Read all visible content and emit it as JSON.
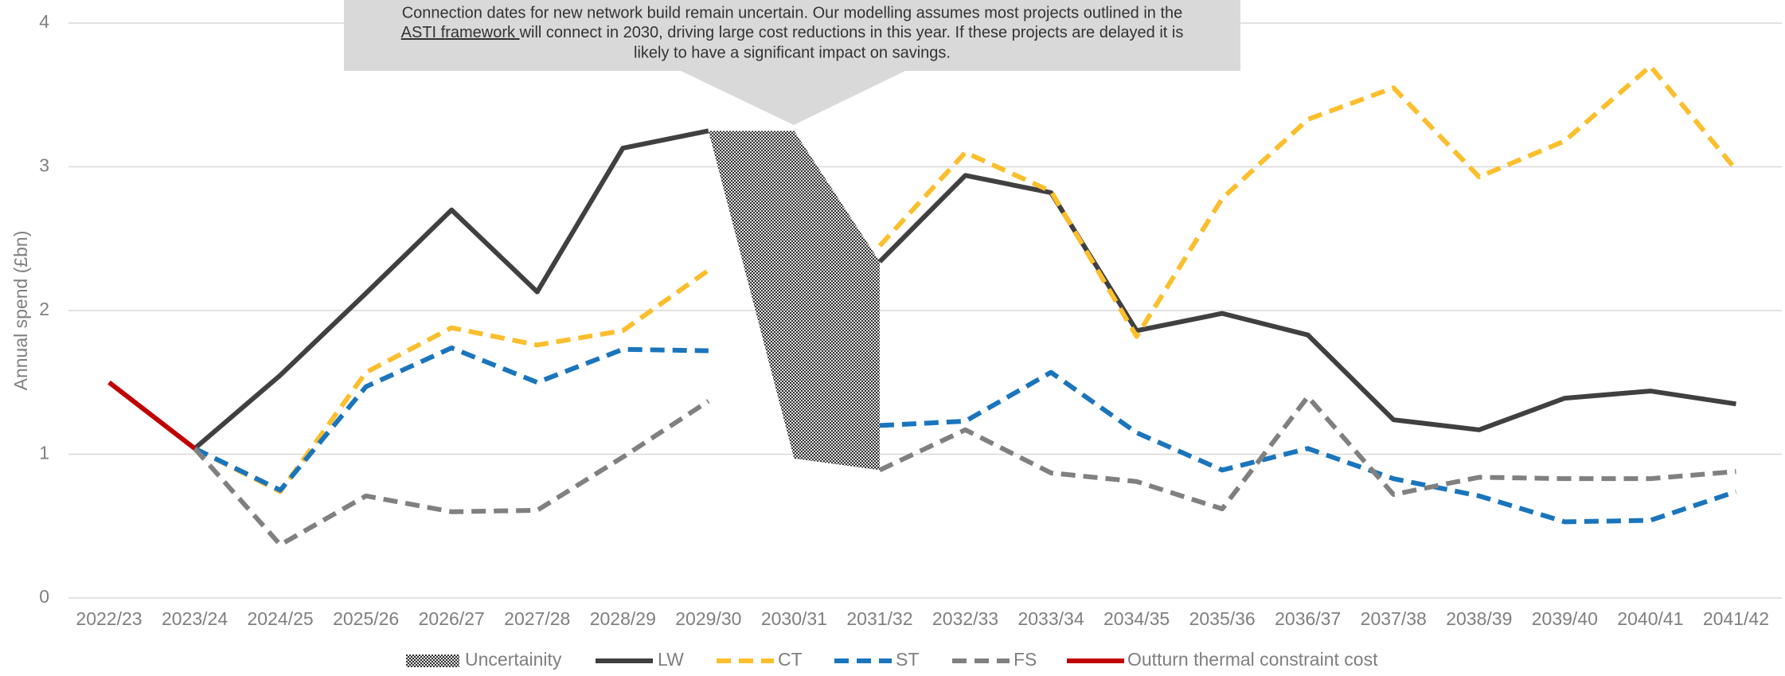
{
  "chart_data": {
    "type": "line",
    "y_label": "Annual spend (£bn)",
    "annotation": {
      "line1": "Connection dates for new network build remain uncertain. Our modelling assumes most projects outlined in the",
      "link": "ASTI framework ",
      "line2": "will connect in 2030, driving large cost reductions in this year. If these projects are delayed it is",
      "line3": "likely to have a significant impact on savings."
    },
    "categories": [
      "2022/23",
      "2023/24",
      "2024/25",
      "2025/26",
      "2026/27",
      "2027/28",
      "2028/29",
      "2029/30",
      "2030/31",
      "2031/32",
      "2032/33",
      "2033/34",
      "2034/35",
      "2035/36",
      "2036/37",
      "2037/38",
      "2038/39",
      "2039/40",
      "2040/41",
      "2041/42"
    ],
    "uncertainty": {
      "name": "Uncertainity",
      "color": "#4d4d4d",
      "upper": [
        null,
        null,
        null,
        null,
        null,
        null,
        null,
        3.25,
        3.25,
        2.34,
        null,
        null,
        null,
        null,
        null,
        null,
        null,
        null,
        null,
        null
      ],
      "lower": [
        null,
        null,
        null,
        null,
        null,
        null,
        null,
        3.25,
        0.97,
        0.89,
        null,
        null,
        null,
        null,
        null,
        null,
        null,
        null,
        null,
        null
      ]
    },
    "series": [
      {
        "name": "LW",
        "color": "#404040",
        "style": "solid",
        "values": [
          null,
          1.04,
          1.55,
          2.12,
          2.7,
          2.13,
          3.13,
          3.25,
          null,
          2.34,
          2.94,
          2.82,
          1.86,
          1.98,
          1.83,
          1.24,
          1.17,
          1.39,
          1.44,
          1.35
        ]
      },
      {
        "name": "CT",
        "color": "#fbbf2d",
        "style": "dashed",
        "values": [
          null,
          1.04,
          0.74,
          1.57,
          1.88,
          1.76,
          1.86,
          2.28,
          null,
          2.45,
          3.1,
          2.83,
          1.82,
          2.78,
          3.33,
          3.55,
          2.93,
          3.18,
          3.7,
          2.98
        ]
      },
      {
        "name": "ST",
        "color": "#1a75bc",
        "style": "dashed",
        "values": [
          null,
          1.04,
          0.75,
          1.47,
          1.74,
          1.5,
          1.73,
          1.72,
          null,
          1.2,
          1.23,
          1.57,
          1.15,
          0.89,
          1.04,
          0.83,
          0.71,
          0.53,
          0.54,
          0.74
        ]
      },
      {
        "name": "FS",
        "color": "#808080",
        "style": "dashed",
        "values": [
          null,
          1.04,
          0.37,
          0.71,
          0.6,
          0.61,
          0.98,
          1.37,
          null,
          0.89,
          1.17,
          0.87,
          0.81,
          0.62,
          1.4,
          0.72,
          0.84,
          0.83,
          0.83,
          0.88
        ]
      },
      {
        "name": "Outturn thermal constraint cost",
        "color": "#c00000",
        "style": "solid",
        "values": [
          1.5,
          1.04,
          null,
          null,
          null,
          null,
          null,
          null,
          null,
          null,
          null,
          null,
          null,
          null,
          null,
          null,
          null,
          null,
          null,
          null
        ]
      }
    ],
    "ylim": [
      0,
      4
    ],
    "yticks": [
      0,
      1,
      2,
      3,
      4
    ],
    "grid": true,
    "legend": "bottom"
  }
}
